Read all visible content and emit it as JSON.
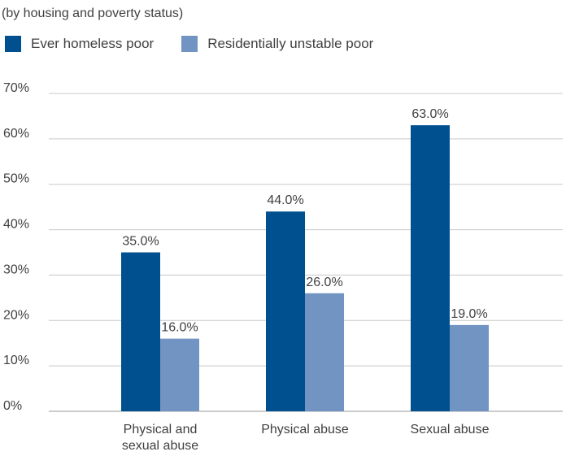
{
  "chart_data": {
    "type": "bar",
    "subtitle": "(by housing and poverty status)",
    "categories": [
      [
        "Physical and",
        "sexual abuse"
      ],
      [
        "Physical abuse"
      ],
      [
        "Sexual abuse"
      ]
    ],
    "series": [
      {
        "name": "Ever homeless poor",
        "values": [
          35,
          44,
          63
        ],
        "labels": [
          "35.0%",
          "44.0%",
          "63.0%"
        ],
        "color": "#00508f"
      },
      {
        "name": "Residentially unstable poor",
        "values": [
          16,
          26,
          19
        ],
        "labels": [
          "16.0%",
          "26.0%",
          "19.0%"
        ],
        "color": "#7294c2"
      }
    ],
    "y_ticks": [
      "0%",
      "10%",
      "20%",
      "30%",
      "40%",
      "50%",
      "60%",
      "70%"
    ],
    "ylim": [
      0,
      70
    ],
    "grid": true,
    "legend_position": "top-left"
  }
}
